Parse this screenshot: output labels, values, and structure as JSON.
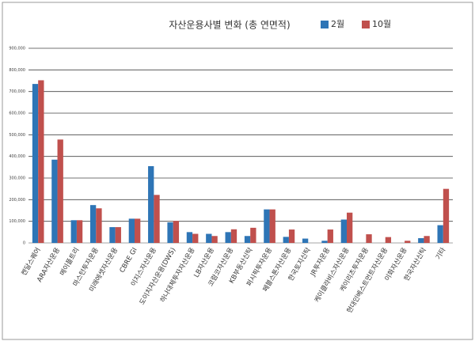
{
  "chart_data": {
    "type": "bar",
    "title": "자산운용사별 변화 (총 연면적)",
    "categories": [
      "켄달스퀘어",
      "ARA자산운용",
      "메이플트리",
      "마스턴투자운용",
      "미래에셋자산운용",
      "CBRE GI",
      "이지스자산운용",
      "도이치자산운용(DWS)",
      "하나대체투자자산운용",
      "LB자산운용",
      "코람코자산운용",
      "KB부동산신탁",
      "퍼시픽투자운용",
      "페블스톤자산운용",
      "한국토지신탁",
      "JR투자운용",
      "케이클라비스자산운용",
      "케이리츠투자운용",
      "현대인베스트먼트자산운용",
      "이화자산운용",
      "한국자산신탁",
      "기타"
    ],
    "series": [
      {
        "name": "2월",
        "color": "#2e75b6",
        "values": [
          735000,
          385000,
          105000,
          175000,
          73000,
          112000,
          355000,
          95000,
          50000,
          42000,
          50000,
          32000,
          155000,
          28000,
          20000,
          10000,
          108000,
          0,
          0,
          0,
          22000,
          82000
        ]
      },
      {
        "name": "10월",
        "color": "#c0504d",
        "values": [
          752000,
          478000,
          105000,
          160000,
          73000,
          112000,
          222000,
          102000,
          42000,
          32000,
          63000,
          70000,
          155000,
          62000,
          0,
          62000,
          140000,
          40000,
          27000,
          10000,
          32000,
          250000
        ]
      }
    ],
    "ylim": [
      0,
      900000
    ],
    "yticks": [
      0,
      {
        "value": 100000,
        "label": "100,000"
      },
      {
        "value": 200000,
        "label": "200,000"
      },
      {
        "value": 300000,
        "label": "300,000"
      },
      {
        "value": 400000,
        "label": "400,000"
      },
      {
        "value": 500000,
        "label": "500,000"
      },
      {
        "value": 600000,
        "label": "600,000"
      },
      {
        "value": 700000,
        "label": "700,000"
      },
      {
        "value": 800000,
        "label": "800,000"
      },
      {
        "value": 900000,
        "label": "900,000"
      }
    ],
    "grid": true,
    "legend": "top-right"
  }
}
